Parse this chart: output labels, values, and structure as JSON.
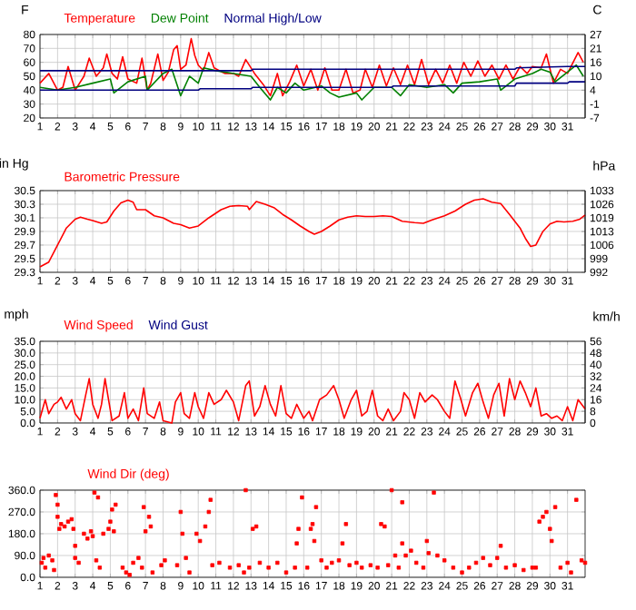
{
  "chart_data": [
    {
      "type": "line",
      "ylabel": "F",
      "y2label": "C",
      "grid": true,
      "xlim": [
        1,
        32
      ],
      "xticks": [
        1,
        2,
        3,
        4,
        5,
        6,
        7,
        8,
        9,
        10,
        11,
        12,
        13,
        14,
        15,
        16,
        17,
        18,
        19,
        20,
        21,
        22,
        23,
        24,
        25,
        26,
        27,
        28,
        29,
        30,
        31
      ],
      "ylim": [
        20,
        80
      ],
      "yticks": [
        20,
        30,
        40,
        50,
        60,
        70,
        80
      ],
      "y2lim": [
        -6.67,
        26.67
      ],
      "y2ticks": [
        {
          "value": -6.67,
          "label": "-7"
        },
        {
          "value": -1.11,
          "label": "-1"
        },
        {
          "value": 4.44,
          "label": "4"
        },
        {
          "value": 10,
          "label": "10"
        },
        {
          "value": 15.56,
          "label": "16"
        },
        {
          "value": 21.11,
          "label": "21"
        },
        {
          "value": 26.67,
          "label": "27"
        }
      ],
      "series": [
        {
          "name": "Temperature",
          "color": "#ff0000",
          "x": [
            1,
            1.5,
            2,
            2.3,
            2.6,
            3,
            3.5,
            3.8,
            4.2,
            4.6,
            4.8,
            5.1,
            5.4,
            5.7,
            6,
            6.5,
            6.8,
            7.1,
            7.3,
            7.7,
            8,
            8.3,
            8.6,
            8.8,
            9,
            9.3,
            9.6,
            9.8,
            10,
            10.3,
            10.6,
            10.9,
            11.5,
            12,
            12.3,
            12.7,
            13.2,
            13.7,
            14.1,
            14.5,
            14.8,
            15.2,
            15.6,
            16,
            16.4,
            16.8,
            17.2,
            17.6,
            18,
            18.4,
            18.8,
            19.2,
            19.5,
            19.9,
            20.3,
            20.7,
            21.1,
            21.5,
            21.9,
            22.3,
            22.7,
            23.1,
            23.5,
            23.9,
            24.3,
            24.7,
            25.1,
            25.5,
            25.9,
            26.3,
            26.7,
            27.1,
            27.5,
            27.9,
            28.3,
            28.7,
            29,
            29.5,
            29.8,
            30.2,
            30.6,
            31,
            31.6,
            31.9
          ],
          "values": [
            45,
            52,
            40,
            42,
            57,
            40,
            50,
            63,
            50,
            56,
            66,
            52,
            48,
            64,
            48,
            45,
            63,
            40,
            45,
            66,
            47,
            53,
            69,
            72,
            55,
            58,
            77,
            65,
            58,
            54,
            67,
            56,
            52,
            52,
            50,
            62,
            52,
            44,
            36,
            52,
            36,
            46,
            58,
            43,
            55,
            40,
            56,
            40,
            40,
            55,
            38,
            40,
            55,
            42,
            58,
            43,
            56,
            44,
            58,
            44,
            62,
            44,
            55,
            45,
            58,
            45,
            60,
            50,
            61,
            50,
            58,
            48,
            58,
            48,
            57,
            52,
            57,
            56,
            66,
            45,
            55,
            52,
            67,
            60
          ]
        },
        {
          "name": "Dew Point",
          "color": "#008000",
          "x": [
            1,
            2,
            3,
            4,
            5,
            5.2,
            6,
            7,
            7.1,
            8,
            8.5,
            9,
            9.5,
            10,
            10.3,
            11,
            12,
            13,
            13.5,
            14.1,
            14.5,
            15,
            15.5,
            16,
            17,
            17.5,
            18,
            19,
            19.3,
            20,
            21,
            21.5,
            22,
            23,
            24,
            24.5,
            25,
            26,
            27,
            27.2,
            28,
            29,
            29.5,
            30,
            30.3,
            31,
            31.5,
            31.9
          ],
          "values": [
            42,
            40,
            42,
            45,
            48,
            38,
            46,
            50,
            40,
            52,
            55,
            36,
            50,
            45,
            56,
            54,
            52,
            50,
            42,
            33,
            42,
            38,
            45,
            40,
            43,
            38,
            35,
            38,
            33,
            42,
            42,
            36,
            44,
            42,
            44,
            38,
            45,
            46,
            48,
            40,
            48,
            52,
            55,
            53,
            46,
            53,
            58,
            50
          ]
        },
        {
          "name": "Normal High/Low",
          "color": "#000080",
          "x": [
            1,
            13,
            13.1,
            28,
            28.1,
            31,
            32
          ],
          "values": [
            54,
            54,
            55,
            55,
            56,
            57,
            57
          ]
        },
        {
          "color": "#000080",
          "x": [
            1,
            10,
            10.1,
            13,
            13.1,
            21,
            21.1,
            28,
            28.1,
            31,
            31.1,
            32
          ],
          "values": [
            40,
            40,
            41,
            41,
            42,
            42,
            43,
            43,
            45,
            45,
            46,
            46
          ]
        }
      ]
    },
    {
      "type": "line",
      "ylabel": "in Hg",
      "y2label": "hPa",
      "grid": true,
      "xlim": [
        1,
        32
      ],
      "xticks": [
        1,
        2,
        3,
        4,
        5,
        6,
        7,
        8,
        9,
        10,
        11,
        12,
        13,
        14,
        15,
        16,
        17,
        18,
        19,
        20,
        21,
        22,
        23,
        24,
        25,
        26,
        27,
        28,
        29,
        30,
        31
      ],
      "ylim": [
        29.3,
        30.5
      ],
      "yticks": [
        29.3,
        29.5,
        29.7,
        29.9,
        30.1,
        30.3,
        30.5
      ],
      "y2lim": [
        992.2,
        1032.9
      ],
      "y2ticks": [
        {
          "value": 992.2,
          "label": "992"
        },
        {
          "value": 999.0,
          "label": "999"
        },
        {
          "value": 1005.8,
          "label": "1006"
        },
        {
          "value": 1012.5,
          "label": "1013"
        },
        {
          "value": 1019.3,
          "label": "1019"
        },
        {
          "value": 1026.1,
          "label": "1026"
        },
        {
          "value": 1032.9,
          "label": "1033"
        }
      ],
      "series": [
        {
          "name": "Barometric Pressure",
          "color": "#ff0000",
          "x": [
            1,
            1.5,
            2,
            2.5,
            3,
            3.3,
            3.7,
            4,
            4.5,
            4.8,
            5.2,
            5.6,
            6,
            6.3,
            6.5,
            7,
            7.5,
            8,
            8.6,
            9,
            9.5,
            10,
            10.6,
            11.3,
            11.8,
            12.3,
            12.8,
            12.9,
            13.3,
            13.8,
            14.3,
            14.8,
            15.3,
            15.8,
            16.3,
            16.6,
            17,
            17.5,
            18,
            18.5,
            19,
            19.5,
            20,
            20.5,
            21,
            21.6,
            22.3,
            22.8,
            23.3,
            24,
            24.6,
            25.2,
            25.7,
            26.2,
            26.7,
            27.2,
            27.7,
            28,
            28.3,
            28.6,
            28.9,
            29.2,
            29.6,
            30,
            30.4,
            30.8,
            31.3,
            31.7,
            32
          ],
          "values": [
            29.38,
            29.45,
            29.7,
            29.95,
            30.08,
            30.11,
            30.08,
            30.06,
            30.02,
            30.04,
            30.2,
            30.32,
            30.36,
            30.33,
            30.22,
            30.22,
            30.13,
            30.1,
            30.02,
            30.0,
            29.95,
            29.98,
            30.1,
            30.22,
            30.27,
            30.28,
            30.27,
            30.22,
            30.34,
            30.3,
            30.25,
            30.15,
            30.07,
            29.98,
            29.9,
            29.86,
            29.9,
            29.98,
            30.07,
            30.11,
            30.13,
            30.12,
            30.12,
            30.13,
            30.12,
            30.05,
            30.03,
            30.02,
            30.07,
            30.13,
            30.2,
            30.3,
            30.36,
            30.38,
            30.33,
            30.31,
            30.15,
            30.05,
            29.95,
            29.8,
            29.68,
            29.7,
            29.9,
            30.01,
            30.05,
            30.04,
            30.05,
            30.08,
            30.14
          ]
        }
      ]
    },
    {
      "type": "line",
      "ylabel": "mph",
      "y2label": "km/h",
      "grid": true,
      "xlim": [
        1,
        32
      ],
      "xticks": [
        1,
        2,
        3,
        4,
        5,
        6,
        7,
        8,
        9,
        10,
        11,
        12,
        13,
        14,
        15,
        16,
        17,
        18,
        19,
        20,
        21,
        22,
        23,
        24,
        25,
        26,
        27,
        28,
        29,
        30,
        31
      ],
      "ylim": [
        0,
        35
      ],
      "yticks": [
        {
          "value": 0,
          "label": "0.0"
        },
        {
          "value": 5,
          "label": "5.0"
        },
        {
          "value": 10,
          "label": "10.0"
        },
        {
          "value": 15,
          "label": "15.0"
        },
        {
          "value": 20,
          "label": "20.0"
        },
        {
          "value": 25,
          "label": "25.0"
        },
        {
          "value": 30,
          "label": "30.0"
        },
        {
          "value": 35,
          "label": "35.0"
        }
      ],
      "y2lim": [
        0,
        56.33
      ],
      "y2ticks": [
        {
          "value": 0,
          "label": "0"
        },
        {
          "value": 8.05,
          "label": "8"
        },
        {
          "value": 16.09,
          "label": "16"
        },
        {
          "value": 24.14,
          "label": "24"
        },
        {
          "value": 32.19,
          "label": "32"
        },
        {
          "value": 40.23,
          "label": "40"
        },
        {
          "value": 48.28,
          "label": "48"
        },
        {
          "value": 56.33,
          "label": "56"
        }
      ],
      "series": [
        {
          "name": "Wind Speed",
          "color": "#ff0000",
          "x": [
            1,
            1.3,
            1.5,
            1.8,
            2,
            2.2,
            2.5,
            2.8,
            3,
            3.3,
            3.6,
            3.8,
            4,
            4.3,
            4.5,
            4.7,
            4.9,
            5.1,
            5.5,
            5.8,
            6,
            6.3,
            6.6,
            6.9,
            7.1,
            7.5,
            7.8,
            8,
            8.5,
            8.7,
            9,
            9.2,
            9.5,
            9.8,
            10,
            10.3,
            10.6,
            10.9,
            11.3,
            11.6,
            12,
            12.3,
            12.7,
            12.9,
            13.2,
            13.5,
            13.8,
            14.1,
            14.4,
            14.7,
            15,
            15.3,
            15.6,
            16,
            16.3,
            16.5,
            16.9,
            17.3,
            17.7,
            18,
            18.3,
            18.7,
            19,
            19.3,
            19.6,
            19.9,
            20.2,
            20.5,
            20.8,
            21.1,
            21.5,
            21.7,
            22,
            22.3,
            22.6,
            22.9,
            23.3,
            23.6,
            24,
            24.3,
            24.6,
            24.9,
            25.2,
            25.6,
            25.9,
            26.2,
            26.5,
            26.8,
            27.1,
            27.4,
            27.7,
            28,
            28.3,
            28.6,
            28.9,
            29.2,
            29.5,
            29.8,
            30.1,
            30.4,
            30.7,
            31,
            31.3,
            31.6,
            32
          ],
          "values": [
            2,
            10,
            4,
            8,
            9,
            11,
            6,
            10,
            4,
            1,
            12,
            19,
            8,
            2,
            8,
            19,
            10,
            1,
            3,
            13,
            2,
            6,
            1,
            15,
            4,
            2,
            9,
            1,
            0,
            9,
            13,
            4,
            2,
            13,
            7,
            2,
            13,
            8,
            10,
            14,
            9,
            1,
            16,
            18,
            3,
            7,
            16,
            8,
            3,
            16,
            4,
            2,
            8,
            2,
            5,
            1,
            10,
            12,
            16,
            10,
            2,
            10,
            14,
            3,
            5,
            14,
            3,
            1,
            6,
            1,
            5,
            13,
            10,
            2,
            13,
            9,
            12,
            10,
            5,
            2,
            18,
            11,
            3,
            13,
            17,
            9,
            2,
            12,
            17,
            3,
            19,
            10,
            18,
            13,
            7,
            15,
            3,
            4,
            2,
            3,
            1,
            7,
            1,
            10,
            6
          ]
        },
        {
          "name": "Wind Gust",
          "color": "#000080"
        }
      ]
    },
    {
      "type": "scatter",
      "marker": "square",
      "grid": true,
      "xlim": [
        1,
        32
      ],
      "xticks": [
        1,
        2,
        3,
        4,
        5,
        6,
        7,
        8,
        9,
        10,
        11,
        12,
        13,
        14,
        15,
        16,
        17,
        18,
        19,
        20,
        21,
        22,
        23,
        24,
        25,
        26,
        27,
        28,
        29,
        30,
        31
      ],
      "ylim": [
        0,
        360
      ],
      "yticks": [
        {
          "value": 0,
          "label": "0.0"
        },
        {
          "value": 90,
          "label": "90.0"
        },
        {
          "value": 180,
          "label": "180.0"
        },
        {
          "value": 270,
          "label": "270.0"
        },
        {
          "value": 360,
          "label": "360.0"
        }
      ],
      "series": [
        {
          "name": "Wind Dir (deg)",
          "color": "#ff0000",
          "x": [
            1.1,
            1.2,
            1.3,
            1.5,
            1.7,
            1.8,
            1.9,
            2,
            2,
            2.1,
            2.2,
            2.4,
            2.6,
            2.8,
            2.9,
            3,
            3,
            3.2,
            3.5,
            3.7,
            3.9,
            4,
            4.1,
            4.3,
            4.2,
            4.4,
            4.6,
            4.9,
            5,
            5.1,
            5.3,
            5.2,
            5.7,
            5.9,
            6.1,
            6.3,
            6.6,
            6.8,
            6.9,
            7,
            7.2,
            7.3,
            7.4,
            7.9,
            8.1,
            8.8,
            9,
            9.1,
            9.3,
            9.5,
            9.9,
            10.1,
            10.4,
            10.6,
            10.7,
            10.8,
            11.2,
            11.8,
            12.3,
            12.6,
            12.7,
            12.9,
            13.1,
            13.3,
            13.5,
            14,
            14.5,
            15,
            15.5,
            15.6,
            15.7,
            15.9,
            16.2,
            16.4,
            16.5,
            16.7,
            16.6,
            17,
            17.3,
            17.6,
            18,
            18.2,
            18.4,
            18.6,
            19,
            19.3,
            19.8,
            20.2,
            20.4,
            20.6,
            20.8,
            21,
            21.2,
            21.4,
            21.6,
            21.6,
            21.8,
            22.1,
            22.4,
            22.8,
            23,
            23.1,
            23.4,
            23.6,
            24,
            24.5,
            25,
            25.4,
            25.8,
            26.2,
            26.6,
            27,
            27.2,
            27.5,
            28,
            28.5,
            29,
            29.2,
            29.4,
            29.6,
            29.8,
            30,
            30.1,
            30.3,
            30.6,
            31,
            31.2,
            31.5,
            31.8,
            32
          ],
          "values": [
            60,
            80,
            40,
            90,
            70,
            30,
            340,
            300,
            250,
            200,
            220,
            210,
            230,
            240,
            200,
            130,
            80,
            60,
            180,
            160,
            190,
            170,
            350,
            330,
            70,
            40,
            180,
            200,
            230,
            280,
            300,
            190,
            40,
            20,
            10,
            60,
            80,
            40,
            290,
            190,
            250,
            210,
            20,
            50,
            70,
            50,
            270,
            180,
            80,
            20,
            180,
            150,
            210,
            270,
            320,
            50,
            60,
            40,
            50,
            20,
            360,
            40,
            200,
            210,
            60,
            40,
            60,
            20,
            40,
            140,
            200,
            330,
            40,
            200,
            220,
            290,
            150,
            70,
            40,
            60,
            70,
            140,
            220,
            50,
            60,
            40,
            50,
            40,
            220,
            210,
            50,
            360,
            90,
            40,
            140,
            310,
            90,
            110,
            60,
            40,
            150,
            100,
            350,
            90,
            70,
            40,
            20,
            40,
            60,
            80,
            50,
            80,
            130,
            40,
            50,
            30,
            40,
            40,
            230,
            250,
            270,
            200,
            150,
            290,
            40,
            60,
            20,
            320,
            70,
            60
          ]
        }
      ]
    }
  ]
}
